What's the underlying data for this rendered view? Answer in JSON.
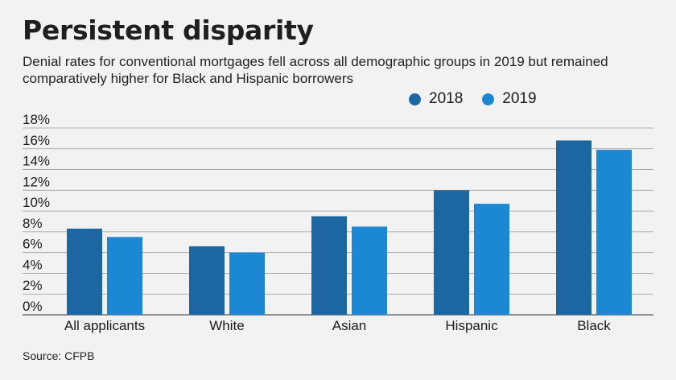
{
  "title": "Persistent disparity",
  "subtitle": "Denial rates for conventional mortgages fell across all demographic groups in 2019 but remained comparatively higher for Black and Hispanic borrowers",
  "source": "Source: CFPB",
  "colors": {
    "2018": "#1c66a2",
    "2019": "#1c88d4",
    "grid": "#9a9a9a",
    "background": "#f2f2f2"
  },
  "chart_data": {
    "type": "bar",
    "categories": [
      "All applicants",
      "White",
      "Asian",
      "Hispanic",
      "Black"
    ],
    "series": [
      {
        "name": "2018",
        "values": [
          8.3,
          6.6,
          9.5,
          12.0,
          16.8
        ]
      },
      {
        "name": "2019",
        "values": [
          7.5,
          6.0,
          8.5,
          10.7,
          15.9
        ]
      }
    ],
    "ylim": [
      0,
      18
    ],
    "yticks": [
      "0%",
      "2%",
      "4%",
      "6%",
      "8%",
      "10%",
      "12%",
      "14%",
      "16%",
      "18%"
    ],
    "grid": true,
    "legend": "top-right"
  }
}
